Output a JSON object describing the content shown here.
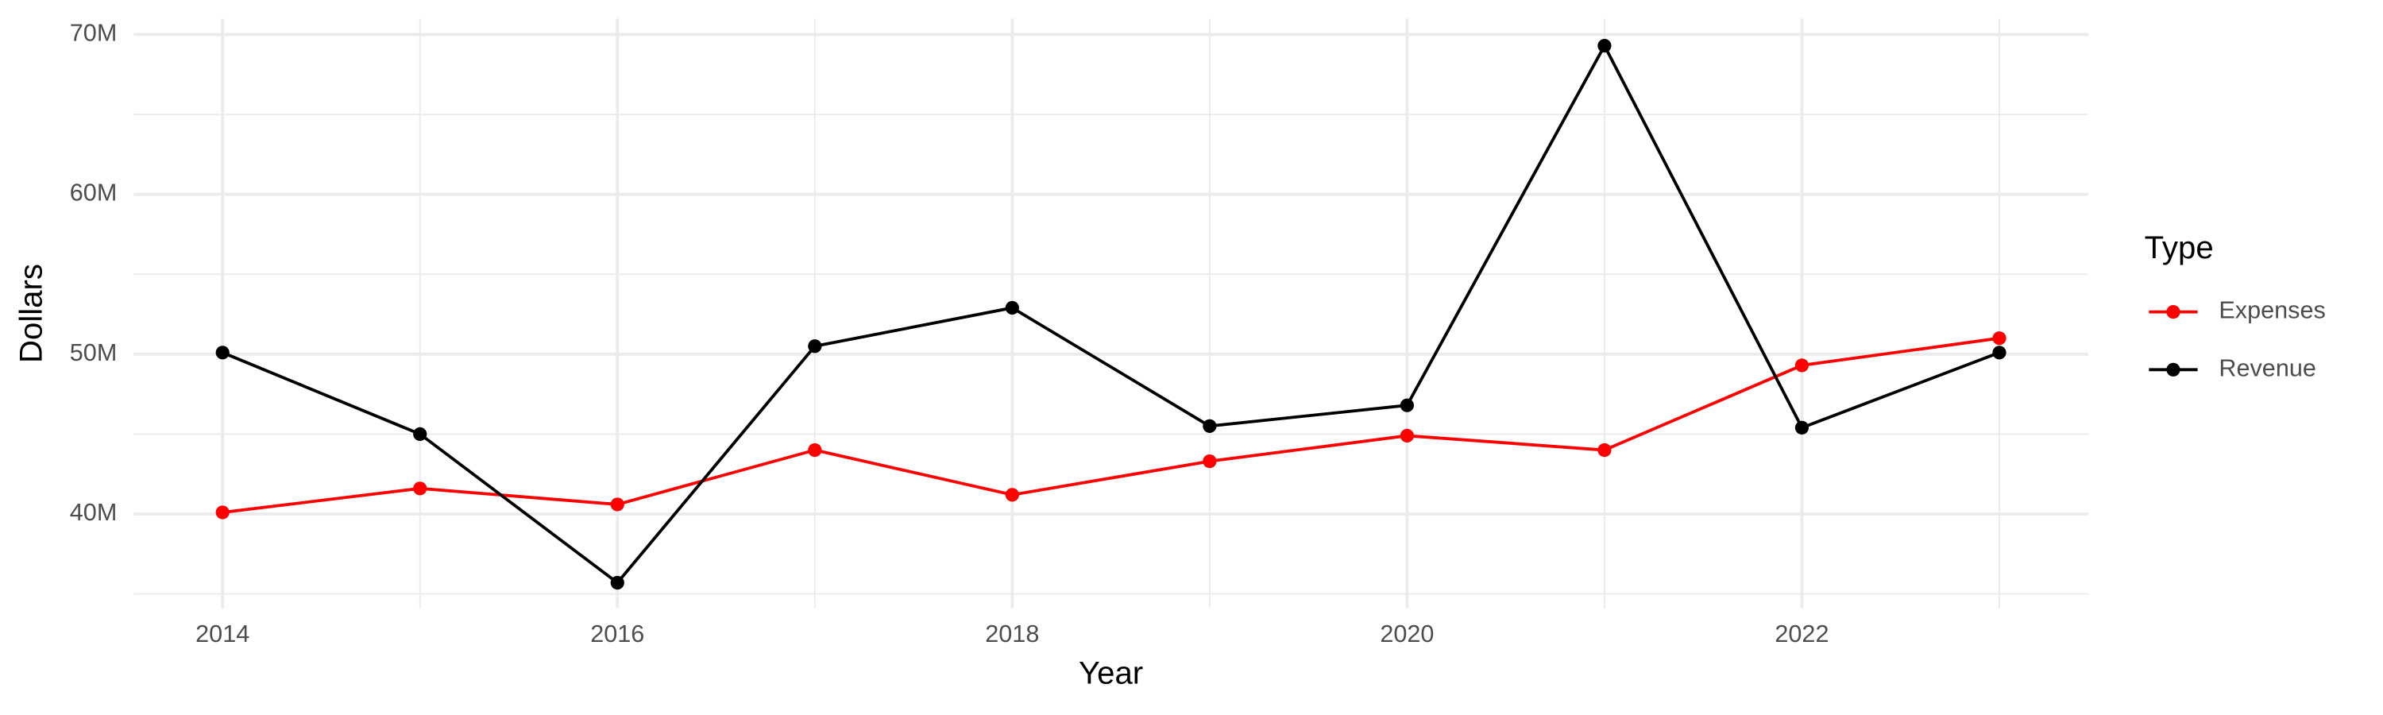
{
  "chart_data": {
    "type": "line",
    "x_label": "Year",
    "y_label": "Dollars",
    "x": [
      2014,
      2015,
      2016,
      2017,
      2018,
      2019,
      2020,
      2021,
      2022,
      2023
    ],
    "series": [
      {
        "name": "Expenses",
        "color": "#ff0000",
        "values": [
          40100000,
          41600000,
          40600000,
          44000000,
          41200000,
          43300000,
          44900000,
          44000000,
          49300000,
          51000000
        ]
      },
      {
        "name": "Revenue",
        "color": "#000000",
        "values": [
          50100000,
          45000000,
          35700000,
          50500000,
          52900000,
          45500000,
          46800000,
          69300000,
          45400000,
          50100000
        ]
      }
    ],
    "xlim": [
      2013.55,
      2023.45
    ],
    "xticks": [
      2014,
      2016,
      2018,
      2020,
      2022
    ],
    "ylim": [
      34100000,
      71000000
    ],
    "yticks": [
      {
        "value": 40000000,
        "label": "40M"
      },
      {
        "value": 50000000,
        "label": "50M"
      },
      {
        "value": 60000000,
        "label": "60M"
      },
      {
        "value": 70000000,
        "label": "70M"
      }
    ],
    "grid": true,
    "legend_title": "Type",
    "legend_position": "right"
  }
}
